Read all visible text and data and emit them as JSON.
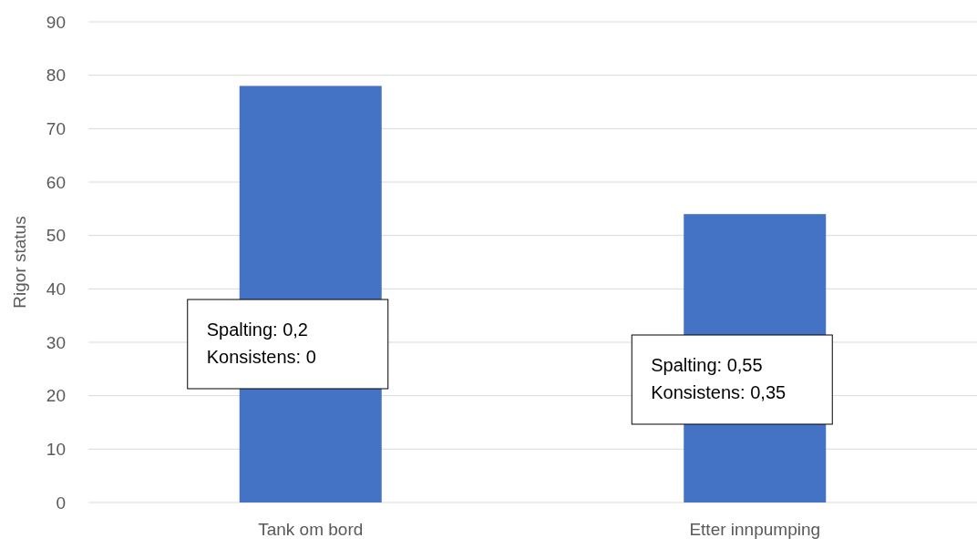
{
  "chart_data": {
    "type": "bar",
    "ylabel": "Rigor status",
    "categories": [
      "Tank om bord",
      "Etter innpumping"
    ],
    "values": [
      78,
      54
    ],
    "color": "#4472c4",
    "ylim": [
      0,
      90
    ],
    "yticks": [
      0,
      10,
      20,
      30,
      40,
      50,
      60,
      70,
      80,
      90
    ],
    "grid": "y",
    "annotations": [
      "Spalting: 0,2\nKonsistens: 0",
      "Spalting: 0,55\nKonsistens: 0,35"
    ]
  }
}
